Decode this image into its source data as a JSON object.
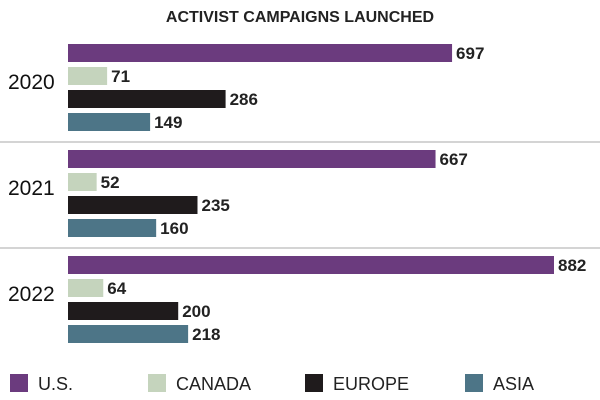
{
  "chart_data": {
    "type": "bar",
    "orientation": "horizontal",
    "title": "ACTIVIST CAMPAIGNS LAUNCHED",
    "categories": [
      "2020",
      "2021",
      "2022"
    ],
    "series": [
      {
        "name": "U.S.",
        "color": "#6b3b7e",
        "values": [
          697,
          667,
          882
        ]
      },
      {
        "name": "CANADA",
        "color": "#c5d4bd",
        "values": [
          71,
          52,
          64
        ]
      },
      {
        "name": "EUROPE",
        "color": "#1f1b1c",
        "values": [
          286,
          235,
          200
        ]
      },
      {
        "name": "ASIA",
        "color": "#4d7587",
        "values": [
          149,
          160,
          218
        ]
      }
    ],
    "legend_position": "bottom",
    "grid": false
  }
}
